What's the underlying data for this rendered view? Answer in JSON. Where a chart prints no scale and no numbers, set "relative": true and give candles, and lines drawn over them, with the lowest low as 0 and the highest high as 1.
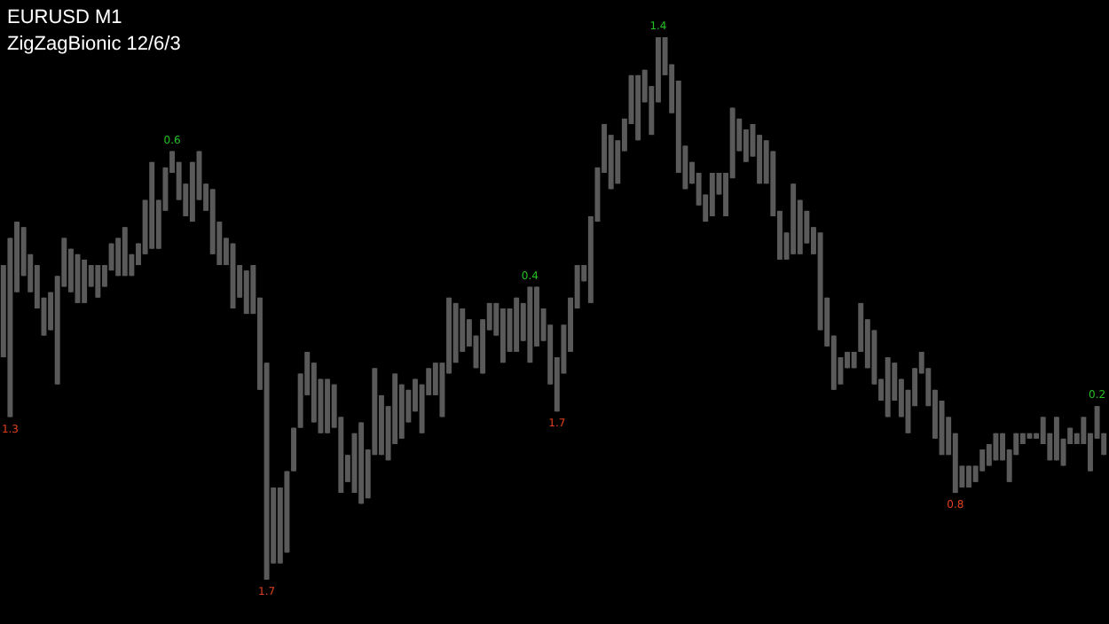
{
  "chart_data": {
    "type": "candlestick",
    "title": "EURUSD M1",
    "subtitle": "ZigZagBionic 12/6/3",
    "relative": true,
    "color": "#5a5a5a",
    "categories": [
      null,
      null,
      null,
      null,
      null,
      null,
      null,
      null,
      null,
      null,
      null,
      null,
      null,
      null,
      null,
      null,
      null,
      null,
      null,
      null,
      null,
      null,
      null,
      null,
      null,
      null,
      null,
      null,
      null,
      null,
      null,
      null,
      null,
      null,
      null,
      null,
      null,
      null,
      null,
      null,
      null,
      null,
      null,
      null,
      null,
      null,
      null,
      null,
      null,
      null,
      null,
      null,
      null,
      null,
      null,
      null,
      null,
      null,
      null,
      null,
      null,
      null,
      null,
      null,
      null,
      null,
      null,
      null,
      null,
      null,
      null,
      null,
      null,
      null,
      null,
      null,
      null,
      null,
      null,
      null,
      null,
      null,
      null,
      null,
      null,
      null,
      null,
      null,
      null,
      null,
      null,
      null,
      null,
      null,
      null,
      null,
      null,
      null,
      null,
      null,
      null,
      null,
      null,
      null,
      null,
      null,
      null,
      null,
      null,
      null,
      null,
      null,
      null,
      null,
      null,
      null,
      null,
      null,
      null,
      null,
      null,
      null,
      null,
      null,
      null,
      null,
      null,
      null,
      null,
      null,
      null,
      null,
      null,
      null,
      null,
      null,
      null,
      null,
      null,
      null,
      null,
      null,
      null,
      null,
      null,
      null,
      null,
      null,
      null,
      null,
      null,
      null,
      null,
      null,
      null,
      null,
      null,
      null,
      null,
      null,
      null,
      null,
      null,
      null
    ],
    "ohlc": [
      [
        0.58,
        0.58,
        0.41,
        0.41
      ],
      [
        0.63,
        0.63,
        0.3,
        0.3
      ],
      [
        0.66,
        0.66,
        0.53,
        0.53
      ],
      [
        0.65,
        0.65,
        0.56,
        0.56
      ],
      [
        0.6,
        0.6,
        0.53,
        0.53
      ],
      [
        0.58,
        0.58,
        0.5,
        0.5
      ],
      [
        0.52,
        0.52,
        0.45,
        0.45
      ],
      [
        0.53,
        0.53,
        0.46,
        0.46
      ],
      [
        0.56,
        0.56,
        0.36,
        0.36
      ],
      [
        0.63,
        0.63,
        0.54,
        0.54
      ],
      [
        0.61,
        0.61,
        0.53,
        0.53
      ],
      [
        0.6,
        0.6,
        0.51,
        0.51
      ],
      [
        0.59,
        0.59,
        0.51,
        0.51
      ],
      [
        0.58,
        0.58,
        0.54,
        0.54
      ],
      [
        0.58,
        0.58,
        0.52,
        0.52
      ],
      [
        0.58,
        0.58,
        0.54,
        0.54
      ],
      [
        0.62,
        0.62,
        0.57,
        0.57
      ],
      [
        0.63,
        0.63,
        0.56,
        0.56
      ],
      [
        0.65,
        0.65,
        0.56,
        0.56
      ],
      [
        0.6,
        0.6,
        0.56,
        0.56
      ],
      [
        0.62,
        0.62,
        0.58,
        0.58
      ],
      [
        0.7,
        0.7,
        0.6,
        0.6
      ],
      [
        0.77,
        0.77,
        0.61,
        0.61
      ],
      [
        0.7,
        0.7,
        0.61,
        0.61
      ],
      [
        0.76,
        0.76,
        0.68,
        0.68
      ],
      [
        0.79,
        0.79,
        0.75,
        0.75
      ],
      [
        0.77,
        0.77,
        0.7,
        0.7
      ],
      [
        0.73,
        0.73,
        0.67,
        0.67
      ],
      [
        0.77,
        0.77,
        0.66,
        0.66
      ],
      [
        0.79,
        0.79,
        0.7,
        0.7
      ],
      [
        0.73,
        0.73,
        0.68,
        0.68
      ],
      [
        0.72,
        0.72,
        0.6,
        0.6
      ],
      [
        0.66,
        0.66,
        0.58,
        0.58
      ],
      [
        0.63,
        0.63,
        0.58,
        0.58
      ],
      [
        0.62,
        0.62,
        0.5,
        0.5
      ],
      [
        0.58,
        0.58,
        0.52,
        0.52
      ],
      [
        0.57,
        0.57,
        0.49,
        0.49
      ],
      [
        0.58,
        0.58,
        0.49,
        0.49
      ],
      [
        0.52,
        0.52,
        0.35,
        0.35
      ],
      [
        0.4,
        0.4,
        0,
        0
      ],
      [
        0.17,
        0.17,
        0.03,
        0.03
      ],
      [
        0.17,
        0.17,
        0.03,
        0.03
      ],
      [
        0.2,
        0.2,
        0.05,
        0.05
      ],
      [
        0.28,
        0.28,
        0.2,
        0.2
      ],
      [
        0.38,
        0.38,
        0.28,
        0.28
      ],
      [
        0.42,
        0.42,
        0.34,
        0.34
      ],
      [
        0.4,
        0.4,
        0.29,
        0.29
      ],
      [
        0.37,
        0.37,
        0.27,
        0.27
      ],
      [
        0.37,
        0.37,
        0.27,
        0.27
      ],
      [
        0.36,
        0.36,
        0.28,
        0.28
      ],
      [
        0.3,
        0.3,
        0.16,
        0.16
      ],
      [
        0.23,
        0.23,
        0.18,
        0.18
      ],
      [
        0.27,
        0.27,
        0.16,
        0.16
      ],
      [
        0.29,
        0.29,
        0.14,
        0.14
      ],
      [
        0.24,
        0.24,
        0.15,
        0.15
      ],
      [
        0.39,
        0.39,
        0.23,
        0.23
      ],
      [
        0.34,
        0.34,
        0.23,
        0.23
      ],
      [
        0.32,
        0.32,
        0.22,
        0.22
      ],
      [
        0.38,
        0.38,
        0.25,
        0.25
      ],
      [
        0.36,
        0.36,
        0.26,
        0.26
      ],
      [
        0.35,
        0.35,
        0.29,
        0.29
      ],
      [
        0.37,
        0.37,
        0.31,
        0.31
      ],
      [
        0.36,
        0.36,
        0.27,
        0.27
      ],
      [
        0.39,
        0.39,
        0.34,
        0.34
      ],
      [
        0.4,
        0.4,
        0.34,
        0.34
      ],
      [
        0.4,
        0.4,
        0.3,
        0.3
      ],
      [
        0.52,
        0.52,
        0.38,
        0.38
      ],
      [
        0.51,
        0.51,
        0.4,
        0.4
      ],
      [
        0.5,
        0.5,
        0.42,
        0.42
      ],
      [
        0.48,
        0.48,
        0.43,
        0.43
      ],
      [
        0.45,
        0.45,
        0.39,
        0.39
      ],
      [
        0.48,
        0.48,
        0.38,
        0.38
      ],
      [
        0.51,
        0.51,
        0.46,
        0.46
      ],
      [
        0.51,
        0.51,
        0.45,
        0.45
      ],
      [
        0.5,
        0.5,
        0.4,
        0.4
      ],
      [
        0.5,
        0.5,
        0.42,
        0.42
      ],
      [
        0.52,
        0.52,
        0.42,
        0.42
      ],
      [
        0.51,
        0.51,
        0.44,
        0.44
      ],
      [
        0.54,
        0.54,
        0.4,
        0.4
      ],
      [
        0.54,
        0.54,
        0.43,
        0.43
      ],
      [
        0.5,
        0.5,
        0.44,
        0.44
      ],
      [
        0.47,
        0.47,
        0.36,
        0.36
      ],
      [
        0.41,
        0.41,
        0.31,
        0.31
      ],
      [
        0.47,
        0.47,
        0.38,
        0.38
      ],
      [
        0.52,
        0.52,
        0.42,
        0.42
      ],
      [
        0.58,
        0.58,
        0.5,
        0.5
      ],
      [
        0.58,
        0.58,
        0.55,
        0.55
      ],
      [
        0.67,
        0.67,
        0.51,
        0.51
      ],
      [
        0.76,
        0.76,
        0.66,
        0.66
      ],
      [
        0.84,
        0.84,
        0.75,
        0.75
      ],
      [
        0.82,
        0.82,
        0.72,
        0.72
      ],
      [
        0.81,
        0.81,
        0.73,
        0.73
      ],
      [
        0.85,
        0.85,
        0.79,
        0.79
      ],
      [
        0.93,
        0.93,
        0.84,
        0.84
      ],
      [
        0.93,
        0.93,
        0.81,
        0.81
      ],
      [
        0.94,
        0.94,
        0.88,
        0.88
      ],
      [
        0.91,
        0.91,
        0.82,
        0.82
      ],
      [
        1,
        1,
        0.88,
        0.88
      ],
      [
        1,
        1,
        0.93,
        0.93
      ],
      [
        0.95,
        0.95,
        0.86,
        0.86
      ],
      [
        0.92,
        0.92,
        0.75,
        0.75
      ],
      [
        0.8,
        0.8,
        0.72,
        0.72
      ],
      [
        0.77,
        0.77,
        0.73,
        0.73
      ],
      [
        0.75,
        0.75,
        0.69,
        0.69
      ],
      [
        0.71,
        0.71,
        0.66,
        0.66
      ],
      [
        0.75,
        0.75,
        0.67,
        0.67
      ],
      [
        0.75,
        0.75,
        0.71,
        0.71
      ],
      [
        0.75,
        0.75,
        0.67,
        0.67
      ],
      [
        0.87,
        0.87,
        0.74,
        0.74
      ],
      [
        0.85,
        0.85,
        0.79,
        0.79
      ],
      [
        0.83,
        0.83,
        0.77,
        0.77
      ],
      [
        0.84,
        0.84,
        0.78,
        0.78
      ],
      [
        0.82,
        0.82,
        0.73,
        0.73
      ],
      [
        0.81,
        0.81,
        0.73,
        0.73
      ],
      [
        0.79,
        0.79,
        0.67,
        0.67
      ],
      [
        0.68,
        0.68,
        0.59,
        0.59
      ],
      [
        0.64,
        0.64,
        0.59,
        0.59
      ],
      [
        0.73,
        0.73,
        0.6,
        0.6
      ],
      [
        0.7,
        0.7,
        0.6,
        0.6
      ],
      [
        0.68,
        0.68,
        0.62,
        0.62
      ],
      [
        0.65,
        0.65,
        0.6,
        0.6
      ],
      [
        0.64,
        0.64,
        0.46,
        0.46
      ],
      [
        0.52,
        0.52,
        0.43,
        0.43
      ],
      [
        0.45,
        0.45,
        0.35,
        0.35
      ],
      [
        0.41,
        0.41,
        0.36,
        0.36
      ],
      [
        0.42,
        0.42,
        0.39,
        0.39
      ],
      [
        0.42,
        0.42,
        0.39,
        0.39
      ],
      [
        0.51,
        0.51,
        0.42,
        0.42
      ],
      [
        0.48,
        0.48,
        0.39,
        0.39
      ],
      [
        0.46,
        0.46,
        0.36,
        0.36
      ],
      [
        0.37,
        0.37,
        0.33,
        0.33
      ],
      [
        0.41,
        0.41,
        0.3,
        0.3
      ],
      [
        0.4,
        0.4,
        0.33,
        0.33
      ],
      [
        0.37,
        0.37,
        0.3,
        0.3
      ],
      [
        0.35,
        0.35,
        0.27,
        0.27
      ],
      [
        0.39,
        0.39,
        0.32,
        0.32
      ],
      [
        0.42,
        0.42,
        0.38,
        0.38
      ],
      [
        0.39,
        0.39,
        0.32,
        0.32
      ],
      [
        0.35,
        0.35,
        0.26,
        0.26
      ],
      [
        0.33,
        0.33,
        0.23,
        0.23
      ],
      [
        0.3,
        0.3,
        0.23,
        0.23
      ],
      [
        0.27,
        0.27,
        0.16,
        0.16
      ],
      [
        0.21,
        0.21,
        0.17,
        0.17
      ],
      [
        0.21,
        0.21,
        0.17,
        0.17
      ],
      [
        0.21,
        0.21,
        0.18,
        0.18
      ],
      [
        0.24,
        0.24,
        0.2,
        0.2
      ],
      [
        0.25,
        0.25,
        0.21,
        0.21
      ],
      [
        0.27,
        0.27,
        0.22,
        0.22
      ],
      [
        0.27,
        0.27,
        0.22,
        0.22
      ],
      [
        0.24,
        0.24,
        0.18,
        0.18
      ],
      [
        0.27,
        0.27,
        0.23,
        0.23
      ],
      [
        0.27,
        0.27,
        0.25,
        0.25
      ],
      [
        0.27,
        0.27,
        0.26,
        0.26
      ],
      [
        0.27,
        0.27,
        0.26,
        0.26
      ],
      [
        0.3,
        0.3,
        0.25,
        0.25
      ],
      [
        0.27,
        0.27,
        0.22,
        0.22
      ],
      [
        0.3,
        0.3,
        0.22,
        0.22
      ],
      [
        0.26,
        0.26,
        0.21,
        0.21
      ],
      [
        0.28,
        0.28,
        0.25,
        0.25
      ],
      [
        0.27,
        0.27,
        0.25,
        0.25
      ],
      [
        0.3,
        0.3,
        0.25,
        0.25
      ],
      [
        0.27,
        0.27,
        0.2,
        0.2
      ],
      [
        0.32,
        0.32,
        0.26,
        0.26
      ],
      [
        0.27,
        0.27,
        0.23,
        0.23
      ]
    ],
    "value_labels": [
      null,
      "1.3",
      null,
      null,
      null,
      null,
      null,
      null,
      null,
      null,
      null,
      null,
      null,
      null,
      null,
      null,
      null,
      null,
      null,
      null,
      null,
      null,
      null,
      null,
      null,
      "0.6",
      null,
      null,
      null,
      null,
      null,
      null,
      null,
      null,
      null,
      null,
      null,
      null,
      null,
      "1.7",
      null,
      null,
      null,
      null,
      null,
      null,
      null,
      null,
      null,
      null,
      null,
      null,
      null,
      null,
      null,
      null,
      null,
      null,
      null,
      null,
      null,
      null,
      null,
      null,
      null,
      null,
      null,
      null,
      null,
      null,
      null,
      null,
      null,
      null,
      null,
      null,
      null,
      null,
      "0.4",
      null,
      null,
      null,
      "1.7",
      null,
      null,
      null,
      null,
      null,
      null,
      null,
      null,
      null,
      null,
      null,
      null,
      null,
      null,
      "1.4",
      null,
      null,
      null,
      null,
      null,
      null,
      null,
      null,
      null,
      null,
      null,
      null,
      null,
      null,
      null,
      null,
      null,
      null,
      null,
      null,
      null,
      null,
      null,
      null,
      null,
      null,
      null,
      null,
      null,
      null,
      null,
      null,
      null,
      null,
      null,
      null,
      null,
      null,
      null,
      null,
      null,
      null,
      null,
      "0.8",
      null,
      null,
      null,
      null,
      null,
      null,
      null,
      null,
      null,
      null,
      null,
      null,
      null,
      null,
      null,
      null,
      null,
      null,
      null,
      null,
      "0.2",
      null
    ]
  }
}
